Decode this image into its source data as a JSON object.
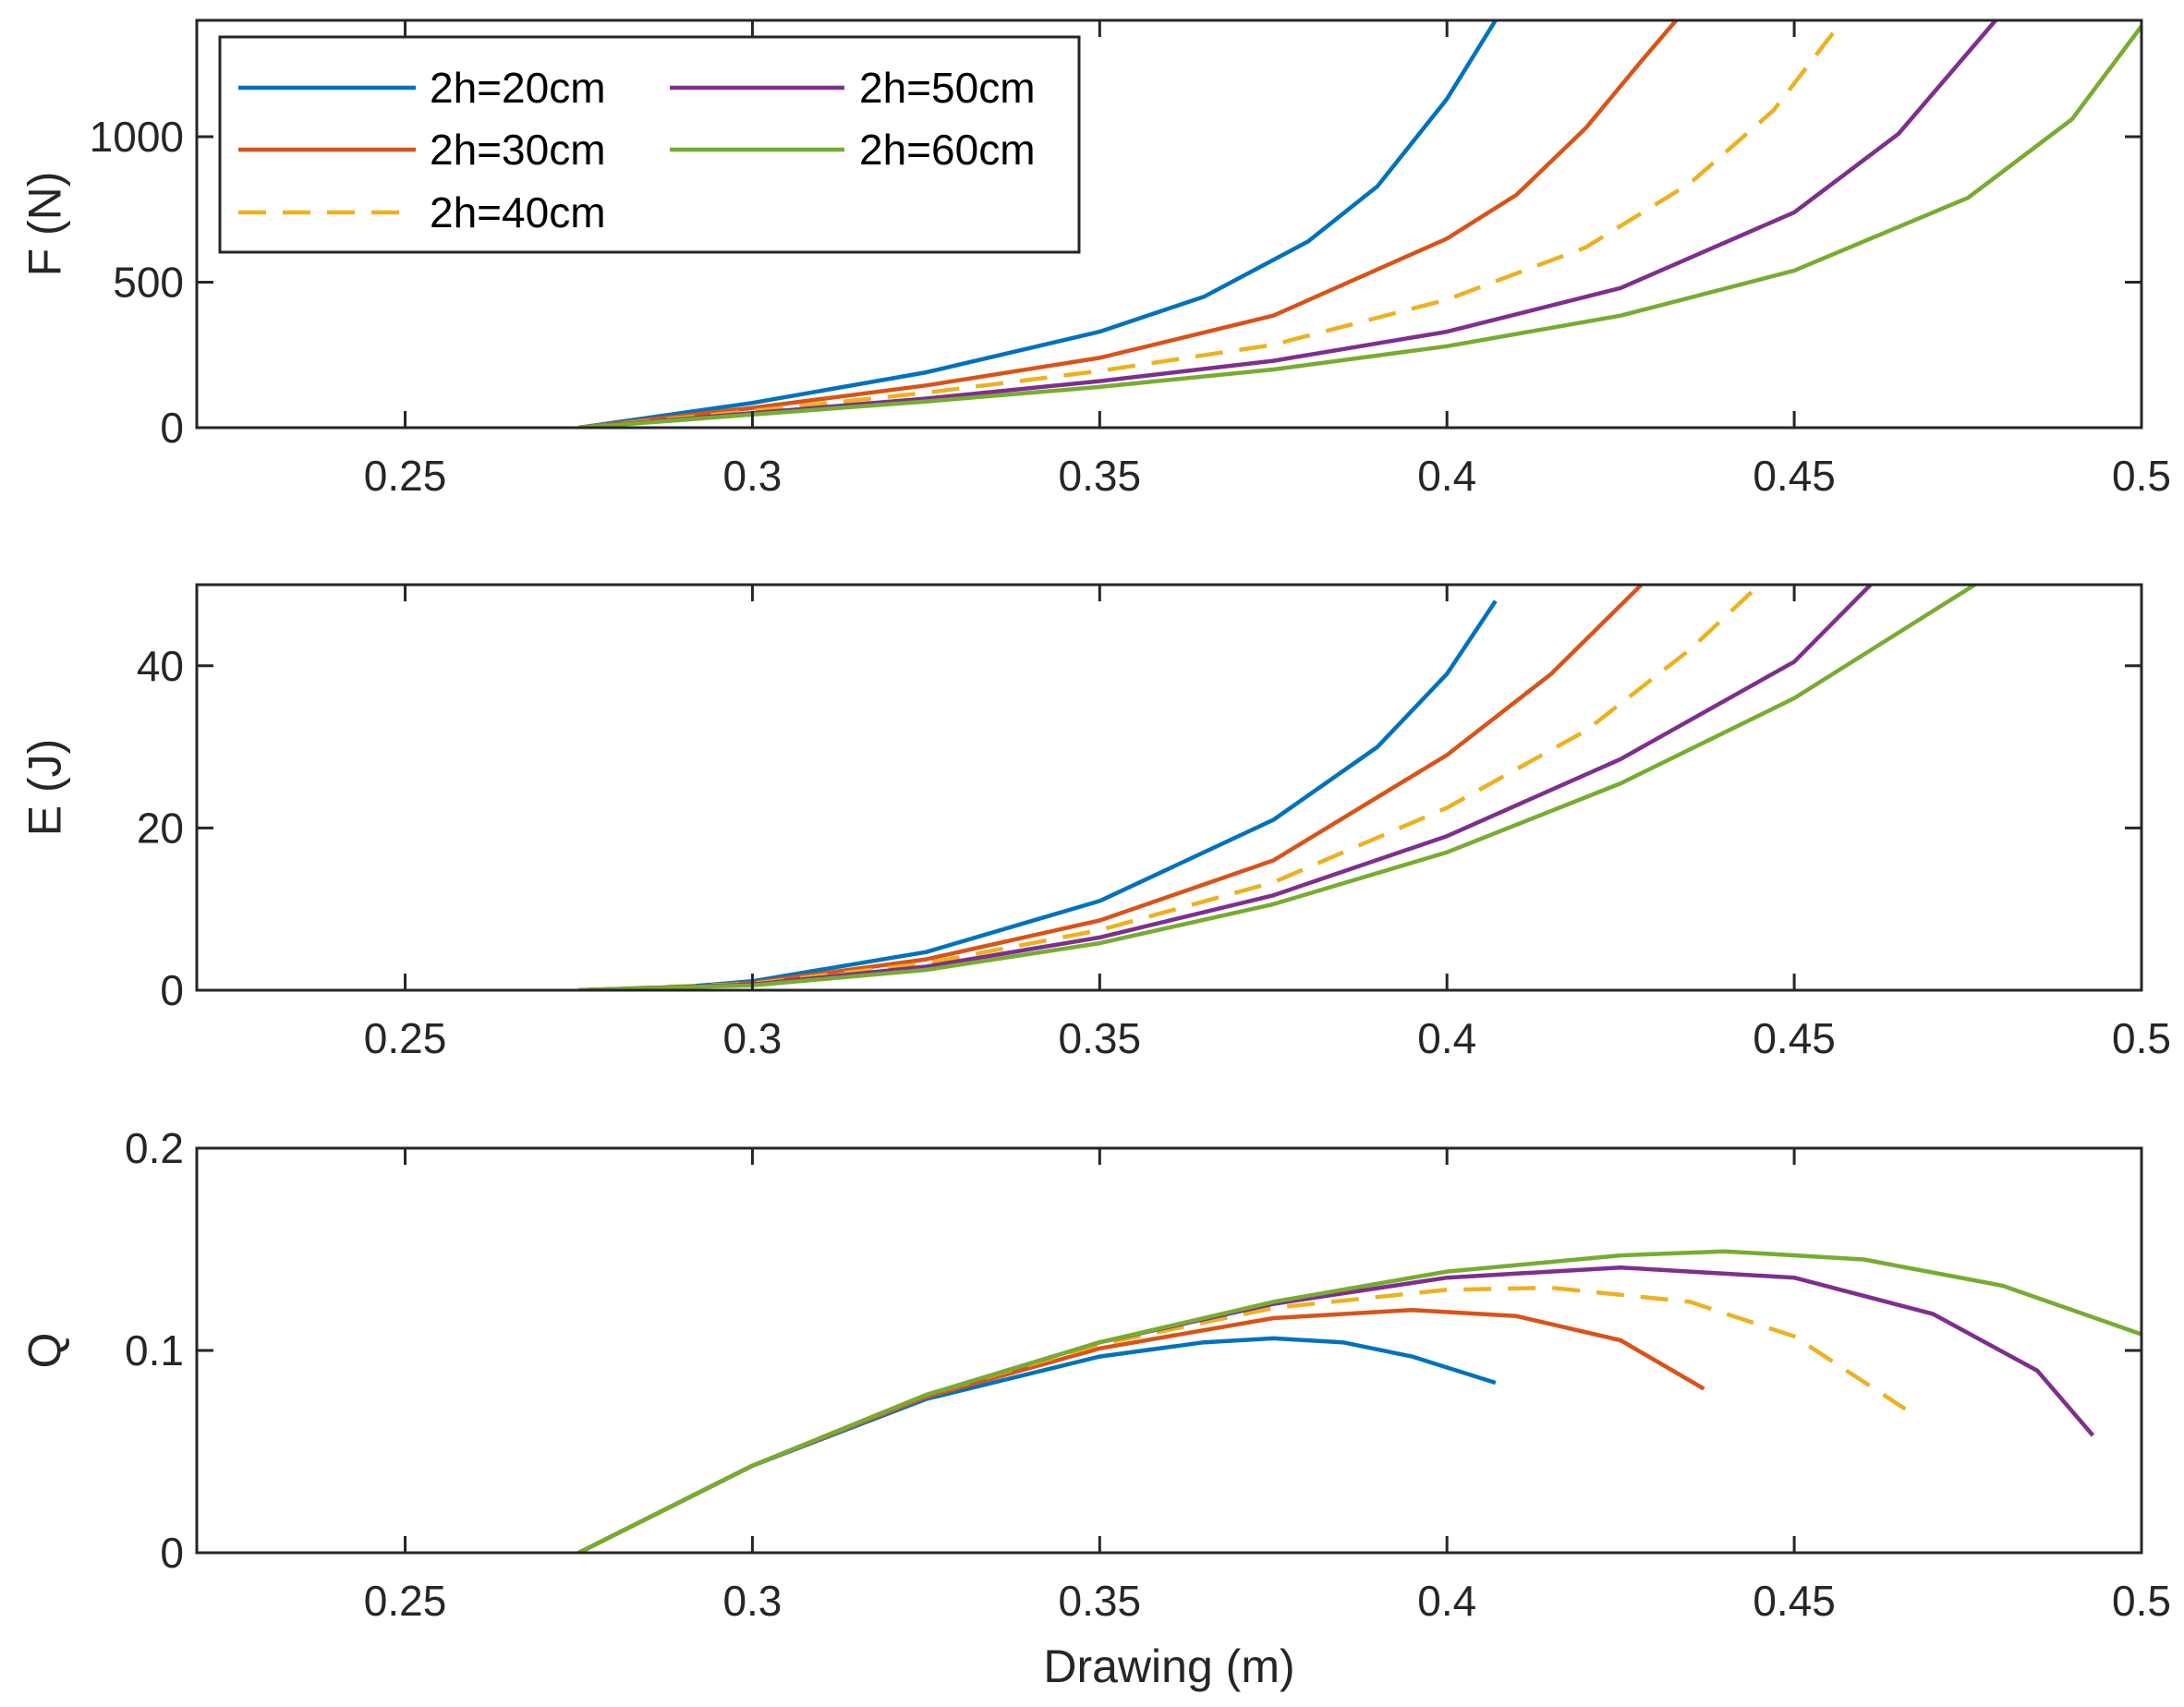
{
  "chart_data": [
    {
      "type": "line",
      "id": "force",
      "xlabel": "",
      "ylabel": "F (N)",
      "xlim": [
        0.22,
        0.5
      ],
      "ylim": [
        0,
        1400
      ],
      "xticks": [
        0.25,
        0.3,
        0.35,
        0.4,
        0.45,
        0.5
      ],
      "xtick_labels": [
        "0.25",
        "0.3",
        "0.35",
        "0.4",
        "0.45",
        "0.5"
      ],
      "yticks": [
        0,
        500,
        1000
      ],
      "ytick_labels": [
        "0",
        "500",
        "1000"
      ],
      "grid": false,
      "legend_position": "top-left",
      "series": [
        {
          "name": "2h=20cm",
          "color": "#0072BD",
          "dash": "solid",
          "x": [
            0.275,
            0.3,
            0.325,
            0.35,
            0.365,
            0.38,
            0.39,
            0.4,
            0.407
          ],
          "y": [
            0,
            85,
            190,
            330,
            450,
            640,
            830,
            1130,
            1400
          ]
        },
        {
          "name": "2h=30cm",
          "color": "#D95319",
          "dash": "solid",
          "x": [
            0.275,
            0.3,
            0.325,
            0.35,
            0.375,
            0.4,
            0.41,
            0.42,
            0.428,
            0.433
          ],
          "y": [
            0,
            68,
            145,
            240,
            385,
            650,
            800,
            1030,
            1260,
            1400
          ]
        },
        {
          "name": "2h=40cm",
          "color": "#EDB120",
          "dash": "dashed",
          "x": [
            0.275,
            0.3,
            0.325,
            0.35,
            0.375,
            0.4,
            0.42,
            0.435,
            0.447,
            0.457
          ],
          "y": [
            0,
            57,
            120,
            195,
            285,
            440,
            620,
            840,
            1090,
            1400
          ]
        },
        {
          "name": "2h=50cm",
          "color": "#7E2F8E",
          "dash": "solid",
          "x": [
            0.275,
            0.3,
            0.325,
            0.35,
            0.375,
            0.4,
            0.425,
            0.45,
            0.465,
            0.479
          ],
          "y": [
            0,
            50,
            100,
            160,
            230,
            330,
            480,
            740,
            1010,
            1400
          ]
        },
        {
          "name": "2h=60cm",
          "color": "#77AC30",
          "dash": "solid",
          "x": [
            0.275,
            0.3,
            0.325,
            0.35,
            0.375,
            0.4,
            0.425,
            0.45,
            0.475,
            0.49,
            0.5
          ],
          "y": [
            0,
            45,
            90,
            140,
            200,
            280,
            385,
            540,
            790,
            1060,
            1380
          ]
        }
      ]
    },
    {
      "type": "line",
      "id": "energy",
      "xlabel": "",
      "ylabel": "E (J)",
      "xlim": [
        0.22,
        0.5
      ],
      "ylim": [
        0,
        50
      ],
      "xticks": [
        0.25,
        0.3,
        0.35,
        0.4,
        0.45,
        0.5
      ],
      "xtick_labels": [
        "0.25",
        "0.3",
        "0.35",
        "0.4",
        "0.45",
        "0.5"
      ],
      "yticks": [
        0,
        20,
        40
      ],
      "ytick_labels": [
        "0",
        "20",
        "40"
      ],
      "grid": false,
      "series": [
        {
          "name": "2h=20cm",
          "color": "#0072BD",
          "dash": "solid",
          "x": [
            0.275,
            0.29,
            0.3,
            0.325,
            0.35,
            0.375,
            0.39,
            0.4,
            0.407
          ],
          "y": [
            0,
            0.4,
            1.1,
            4.7,
            11,
            21,
            30,
            39,
            48
          ]
        },
        {
          "name": "2h=30cm",
          "color": "#D95319",
          "dash": "solid",
          "x": [
            0.275,
            0.29,
            0.3,
            0.325,
            0.35,
            0.375,
            0.4,
            0.415,
            0.428
          ],
          "y": [
            0,
            0.35,
            0.9,
            3.8,
            8.6,
            16,
            29,
            39,
            50
          ]
        },
        {
          "name": "2h=40cm",
          "color": "#EDB120",
          "dash": "dashed",
          "x": [
            0.275,
            0.3,
            0.325,
            0.35,
            0.375,
            0.4,
            0.42,
            0.435,
            0.445
          ],
          "y": [
            0,
            0.8,
            3.3,
            7.4,
            13.3,
            22.5,
            32,
            42,
            50
          ]
        },
        {
          "name": "2h=50cm",
          "color": "#7E2F8E",
          "dash": "solid",
          "x": [
            0.275,
            0.3,
            0.325,
            0.35,
            0.375,
            0.4,
            0.425,
            0.45,
            0.461
          ],
          "y": [
            0,
            0.7,
            2.9,
            6.5,
            11.7,
            19,
            28.5,
            40.5,
            50
          ]
        },
        {
          "name": "2h=60cm",
          "color": "#77AC30",
          "dash": "solid",
          "x": [
            0.275,
            0.3,
            0.325,
            0.35,
            0.375,
            0.4,
            0.425,
            0.45,
            0.476
          ],
          "y": [
            0,
            0.6,
            2.5,
            5.8,
            10.6,
            17,
            25.5,
            36,
            50
          ]
        }
      ]
    },
    {
      "type": "line",
      "id": "quality",
      "xlabel": "Drawing (m)",
      "ylabel": "Q",
      "xlim": [
        0.22,
        0.5
      ],
      "ylim": [
        0,
        0.2
      ],
      "xticks": [
        0.25,
        0.3,
        0.35,
        0.4,
        0.45,
        0.5
      ],
      "xtick_labels": [
        "0.25",
        "0.3",
        "0.35",
        "0.4",
        "0.45",
        "0.5"
      ],
      "yticks": [
        0,
        0.1,
        0.2
      ],
      "ytick_labels": [
        "0",
        "0.1",
        "0.2"
      ],
      "grid": false,
      "series": [
        {
          "name": "2h=20cm",
          "color": "#0072BD",
          "dash": "solid",
          "x": [
            0.275,
            0.3,
            0.325,
            0.35,
            0.365,
            0.375,
            0.385,
            0.395,
            0.407
          ],
          "y": [
            0,
            0.043,
            0.076,
            0.097,
            0.104,
            0.106,
            0.104,
            0.097,
            0.084
          ]
        },
        {
          "name": "2h=30cm",
          "color": "#D95319",
          "dash": "solid",
          "x": [
            0.275,
            0.3,
            0.325,
            0.35,
            0.375,
            0.395,
            0.41,
            0.425,
            0.437
          ],
          "y": [
            0,
            0.043,
            0.077,
            0.101,
            0.116,
            0.12,
            0.117,
            0.105,
            0.081
          ]
        },
        {
          "name": "2h=40cm",
          "color": "#EDB120",
          "dash": "dashed",
          "x": [
            0.275,
            0.3,
            0.325,
            0.35,
            0.375,
            0.4,
            0.415,
            0.435,
            0.45,
            0.466
          ],
          "y": [
            0,
            0.043,
            0.078,
            0.103,
            0.121,
            0.13,
            0.131,
            0.124,
            0.107,
            0.071
          ]
        },
        {
          "name": "2h=50cm",
          "color": "#7E2F8E",
          "dash": "solid",
          "x": [
            0.275,
            0.3,
            0.325,
            0.35,
            0.375,
            0.4,
            0.425,
            0.45,
            0.47,
            0.485,
            0.493
          ],
          "y": [
            0,
            0.043,
            0.078,
            0.104,
            0.123,
            0.136,
            0.141,
            0.136,
            0.118,
            0.09,
            0.058
          ]
        },
        {
          "name": "2h=60cm",
          "color": "#77AC30",
          "dash": "solid",
          "x": [
            0.275,
            0.3,
            0.325,
            0.35,
            0.375,
            0.4,
            0.425,
            0.44,
            0.46,
            0.48,
            0.5
          ],
          "y": [
            0,
            0.043,
            0.078,
            0.104,
            0.124,
            0.139,
            0.147,
            0.149,
            0.145,
            0.132,
            0.108
          ]
        }
      ]
    }
  ]
}
